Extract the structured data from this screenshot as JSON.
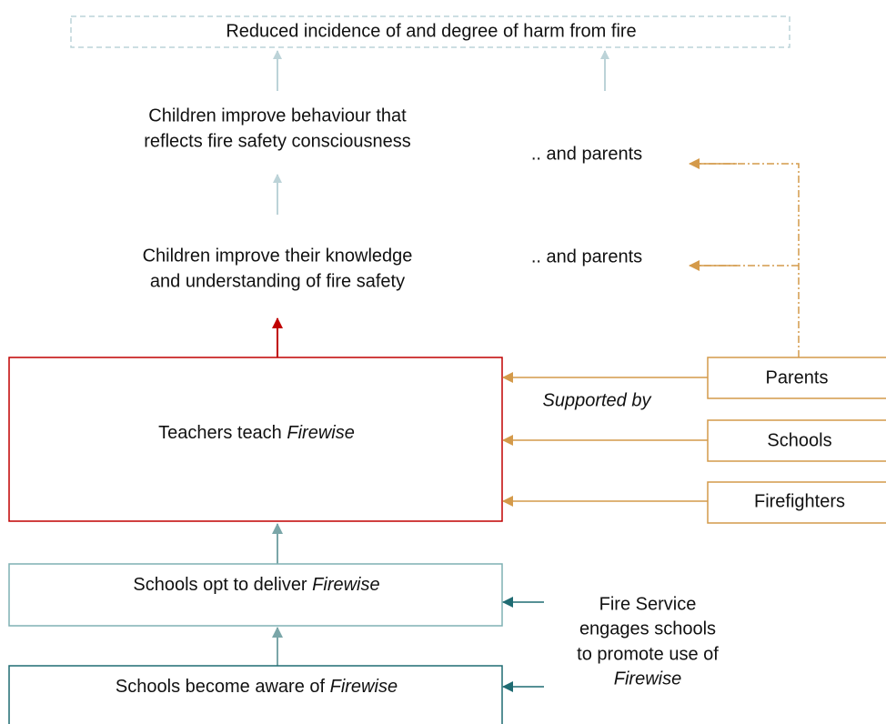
{
  "goal": "Reduced incidence of and degree of harm from fire",
  "behaviour": {
    "lines": [
      "Children improve behaviour that",
      "reflects fire safety consciousness"
    ],
    "parents": ".. and parents"
  },
  "knowledge": {
    "lines": [
      "Children improve their knowledge",
      "and understanding of fire safety"
    ],
    "parents": ".. and parents"
  },
  "teach": {
    "text": "Teachers teach ",
    "emphasis": "Firewise"
  },
  "supporters": {
    "label": "Supported by",
    "items": [
      "Parents",
      "Schools",
      "Firefighters"
    ]
  },
  "opt": {
    "text": "Schools opt to deliver ",
    "emphasis": "Firewise"
  },
  "aware": {
    "text": "Schools become aware of ",
    "emphasis": "Firewise"
  },
  "fire_service": {
    "lines": [
      "Fire Service",
      "engages schools",
      "to promote use of"
    ],
    "emphasis": "Firewise"
  }
}
